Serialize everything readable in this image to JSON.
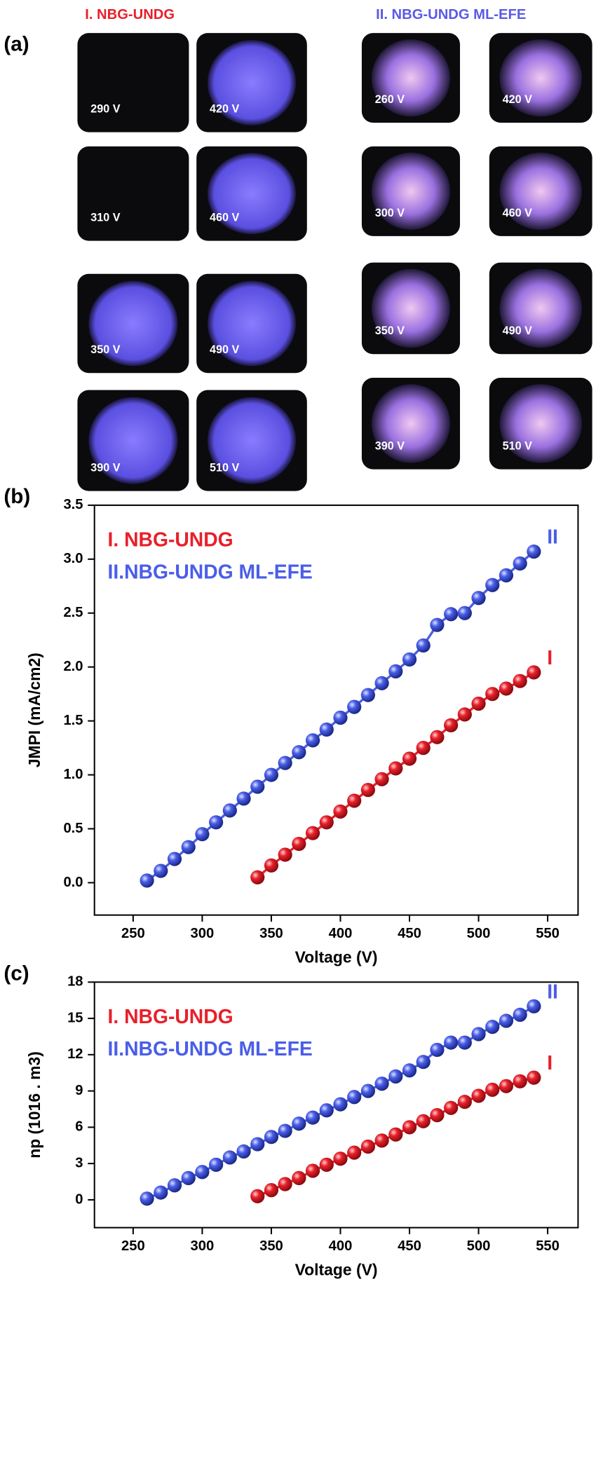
{
  "panel_a": {
    "label": "(a)",
    "groups": [
      {
        "title": "I. NBG-UNDG",
        "labels": [
          "290 V",
          "420 V",
          "310 V",
          "460 V",
          "350 V",
          "490 V",
          "390 V",
          "510 V"
        ]
      },
      {
        "title": "II. NBG-UNDG ML-EFE",
        "labels": [
          "260 V",
          "420 V",
          "300 V",
          "460 V",
          "350 V",
          "490 V",
          "390 V",
          "510 V"
        ]
      }
    ]
  },
  "chart_data": [
    {
      "type": "line",
      "panel": "(b)",
      "xlabel": "Voltage (V)",
      "ylabel": "JMPI (mA/cm2)",
      "xlim": [
        222,
        572
      ],
      "xticks": [
        250,
        300,
        350,
        400,
        450,
        500,
        550
      ],
      "ylim": [
        -0.3,
        3.5
      ],
      "yticks": [
        {
          "value": 0,
          "label": "0.0"
        },
        0.5,
        {
          "value": 1,
          "label": "1.0"
        },
        1.5,
        {
          "value": 2,
          "label": "2.0"
        },
        2.5,
        {
          "value": 3,
          "label": "3.0"
        },
        3.5
      ],
      "series": [
        {
          "name": "I. NBG-UNDG",
          "annotation": "I",
          "color": "#e8202a",
          "x": [
            340,
            350,
            360,
            370,
            380,
            390,
            400,
            410,
            420,
            430,
            440,
            450,
            460,
            470,
            480,
            490,
            500,
            510,
            520,
            530,
            540
          ],
          "values": [
            0.05,
            0.16,
            0.26,
            0.36,
            0.46,
            0.56,
            0.66,
            0.76,
            0.86,
            0.96,
            1.06,
            1.15,
            1.25,
            1.35,
            1.46,
            1.56,
            1.66,
            1.75,
            1.8,
            1.87,
            1.95
          ]
        },
        {
          "name": "II.NBG-UNDG ML-EFE",
          "annotation": "II",
          "color": "#4a5ee8",
          "x": [
            260,
            270,
            280,
            290,
            300,
            310,
            320,
            330,
            340,
            350,
            360,
            370,
            380,
            390,
            400,
            410,
            420,
            430,
            440,
            450,
            460,
            470,
            480,
            490,
            500,
            510,
            520,
            530,
            540
          ],
          "values": [
            0.02,
            0.11,
            0.22,
            0.33,
            0.45,
            0.56,
            0.67,
            0.78,
            0.89,
            1.0,
            1.11,
            1.21,
            1.32,
            1.42,
            1.53,
            1.63,
            1.74,
            1.85,
            1.96,
            2.07,
            2.2,
            2.39,
            2.49,
            2.5,
            2.64,
            2.76,
            2.85,
            2.96,
            3.07
          ]
        }
      ]
    },
    {
      "type": "line",
      "panel": "(c)",
      "xlabel": "Voltage (V)",
      "ylabel": "np (1016 . m3)",
      "xlim": [
        222,
        572
      ],
      "xticks": [
        250,
        300,
        350,
        400,
        450,
        500,
        550
      ],
      "ylim": [
        -2.3,
        18
      ],
      "yticks": [
        0,
        3,
        6,
        9,
        12,
        15,
        18
      ],
      "series": [
        {
          "name": "I. NBG-UNDG",
          "annotation": "I",
          "color": "#e8202a",
          "x": [
            340,
            350,
            360,
            370,
            380,
            390,
            400,
            410,
            420,
            430,
            440,
            450,
            460,
            470,
            480,
            490,
            500,
            510,
            520,
            530,
            540
          ],
          "values": [
            0.3,
            0.8,
            1.3,
            1.8,
            2.4,
            2.9,
            3.4,
            3.9,
            4.4,
            4.9,
            5.4,
            6.0,
            6.5,
            7.0,
            7.6,
            8.1,
            8.6,
            9.1,
            9.4,
            9.8,
            10.1
          ]
        },
        {
          "name": "II.NBG-UNDG ML-EFE",
          "annotation": "II",
          "color": "#4a5ee8",
          "x": [
            260,
            270,
            280,
            290,
            300,
            310,
            320,
            330,
            340,
            350,
            360,
            370,
            380,
            390,
            400,
            410,
            420,
            430,
            440,
            450,
            460,
            470,
            480,
            490,
            500,
            510,
            520,
            530,
            540
          ],
          "values": [
            0.1,
            0.6,
            1.2,
            1.8,
            2.3,
            2.9,
            3.5,
            4.0,
            4.6,
            5.2,
            5.7,
            6.3,
            6.8,
            7.4,
            7.9,
            8.5,
            9.0,
            9.6,
            10.2,
            10.7,
            11.4,
            12.4,
            13.0,
            13.0,
            13.7,
            14.3,
            14.8,
            15.3,
            16.0
          ]
        }
      ]
    }
  ]
}
